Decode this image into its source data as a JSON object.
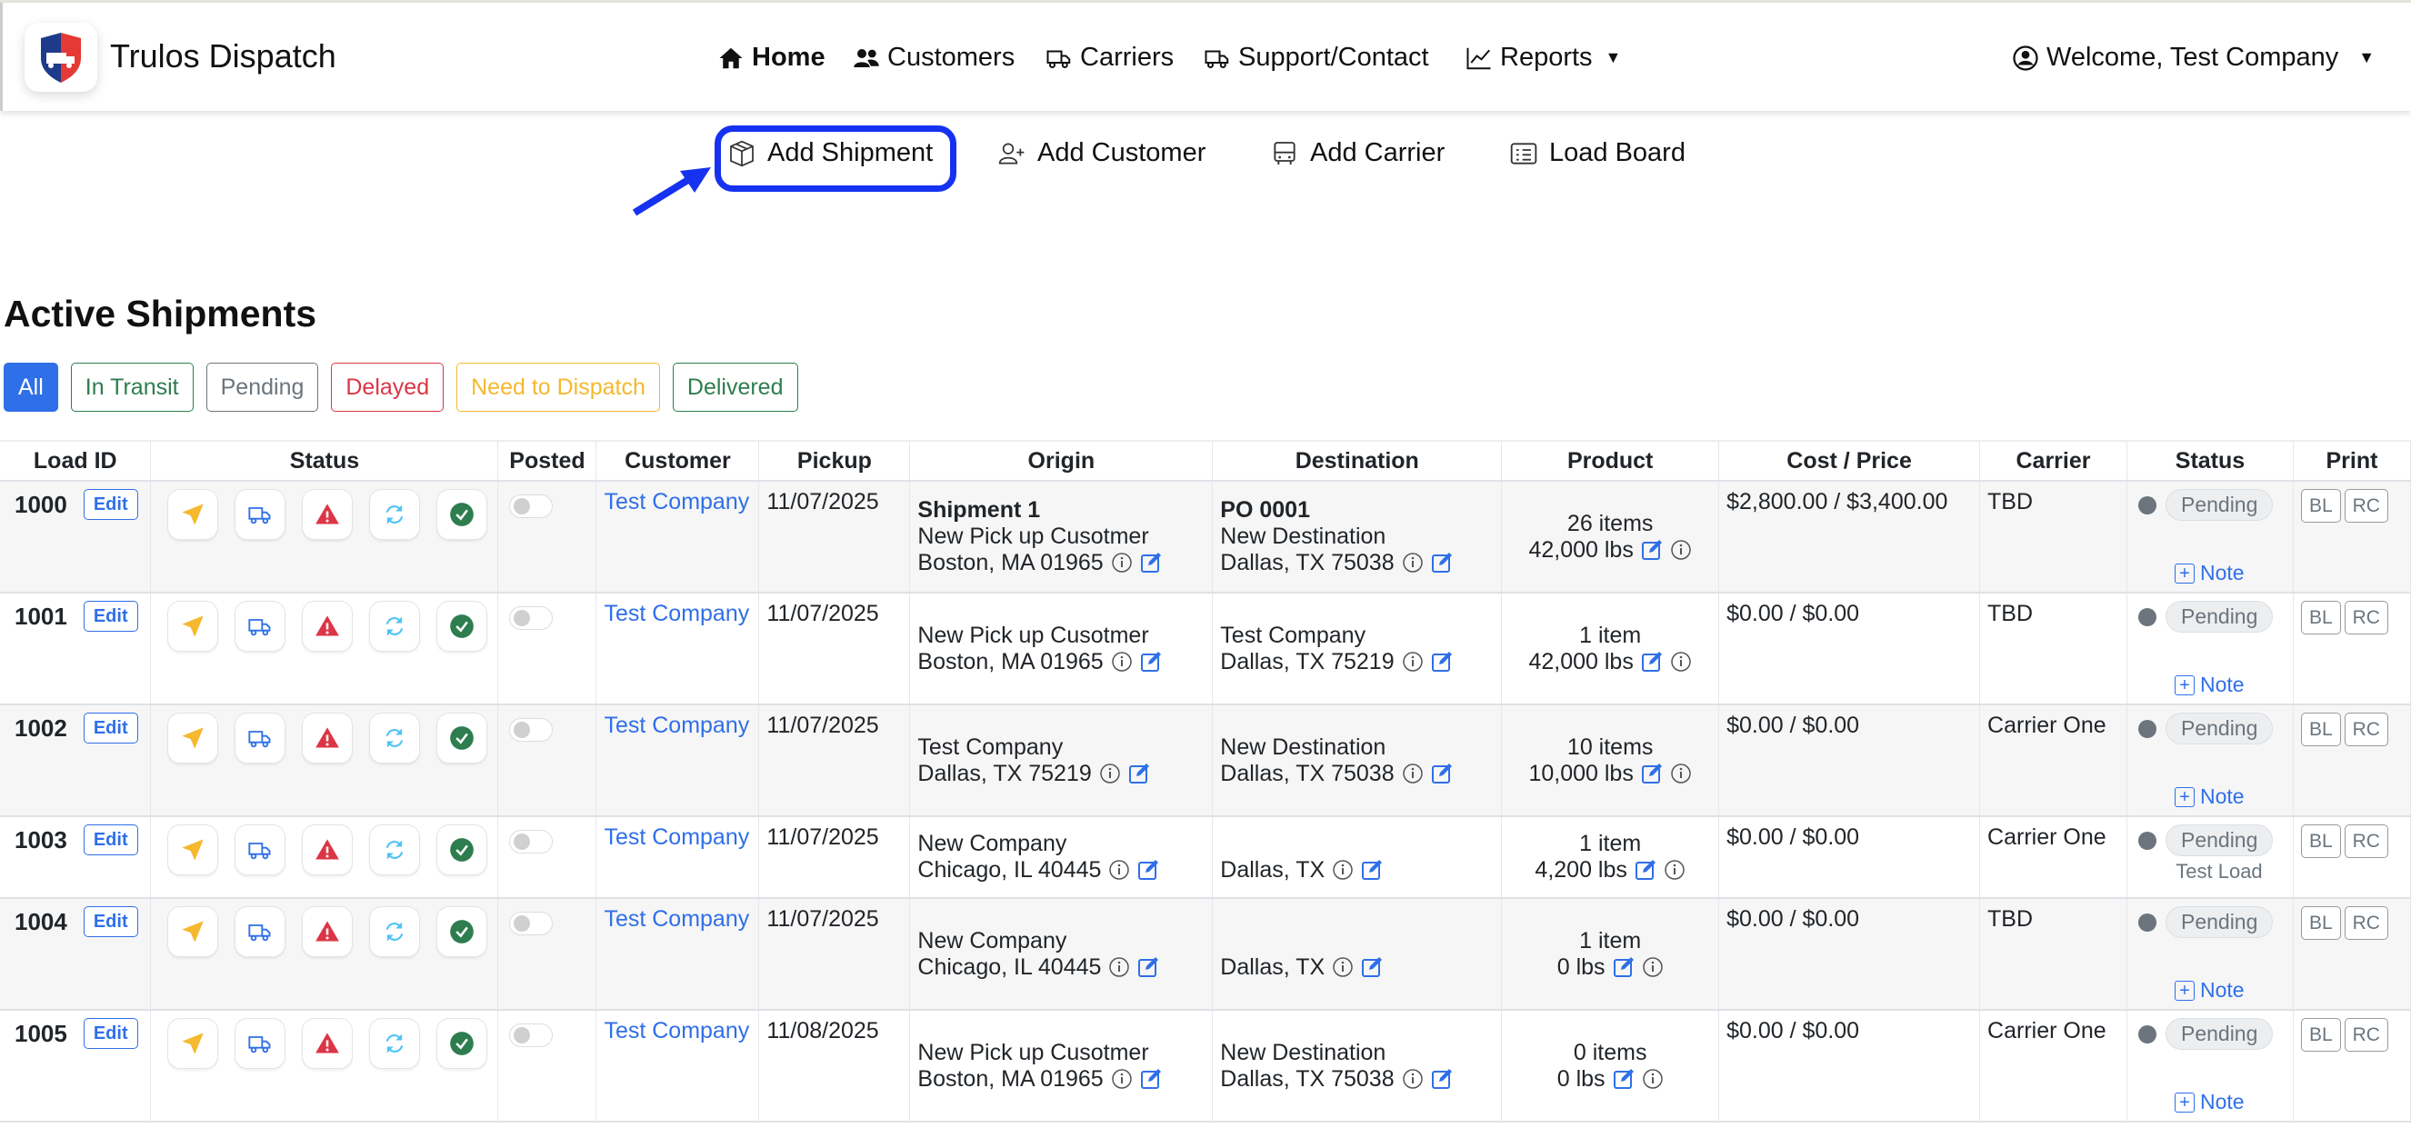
{
  "app": {
    "title": "Trulos Dispatch"
  },
  "nav": {
    "home": "Home",
    "customers": "Customers",
    "carriers": "Carriers",
    "support": "Support/Contact",
    "reports": "Reports",
    "welcome": "Welcome, Test Company"
  },
  "actions": {
    "add_shipment": "Add Shipment",
    "add_customer": "Add Customer",
    "add_carrier": "Add Carrier",
    "load_board": "Load Board"
  },
  "page_title": "Active Shipments",
  "filters": [
    {
      "label": "All",
      "color": "#2f6fe8"
    },
    {
      "label": "In Transit",
      "color": "#2e7d4f"
    },
    {
      "label": "Pending",
      "color": "#6c757d"
    },
    {
      "label": "Delayed",
      "color": "#dc3545"
    },
    {
      "label": "Need to Dispatch",
      "color": "#f5b82e"
    },
    {
      "label": "Delivered",
      "color": "#2e7d4f"
    }
  ],
  "columns": [
    "Load ID",
    "Status",
    "Posted",
    "Customer",
    "Pickup",
    "Origin",
    "Destination",
    "Product",
    "Cost / Price",
    "Carrier",
    "Status",
    "Print"
  ],
  "labels": {
    "edit": "Edit",
    "note": "Note",
    "bl": "BL",
    "rc": "RC"
  },
  "rows": [
    {
      "id": "1000",
      "customer": "Test Company",
      "pickup": "11/07/2025",
      "origin_title": "Shipment 1",
      "origin_name": "New Pick up Cusotmer",
      "origin_city": "Boston, MA 01965",
      "dest_title": "PO 0001",
      "dest_name": "New Destination",
      "dest_city": "Dallas, TX 75038",
      "items": "26 items",
      "weight": "42,000 lbs",
      "cost": "$2,800.00 / $3,400.00",
      "carrier": "TBD",
      "status": "Pending",
      "note": "Note"
    },
    {
      "id": "1001",
      "customer": "Test Company",
      "pickup": "11/07/2025",
      "origin_name": "New Pick up Cusotmer",
      "origin_city": "Boston, MA 01965",
      "dest_name": "Test Company",
      "dest_city": "Dallas, TX 75219",
      "items": "1 item",
      "weight": "42,000 lbs",
      "cost": "$0.00 / $0.00",
      "carrier": "TBD",
      "status": "Pending",
      "note": "Note"
    },
    {
      "id": "1002",
      "customer": "Test Company",
      "pickup": "11/07/2025",
      "origin_name": "Test Company",
      "origin_city": "Dallas, TX 75219",
      "dest_name": "New Destination",
      "dest_city": "Dallas, TX 75038",
      "items": "10 items",
      "weight": "10,000 lbs",
      "cost": "$0.00 / $0.00",
      "carrier": "Carrier One",
      "status": "Pending",
      "note": "Note"
    },
    {
      "id": "1003",
      "customer": "Test Company",
      "pickup": "11/07/2025",
      "origin_name": "New Company",
      "origin_city": "Chicago, IL 40445",
      "dest_city": "Dallas, TX",
      "items": "1 item",
      "weight": "4,200 lbs",
      "cost": "$0.00 / $0.00",
      "carrier": "Carrier One",
      "status": "Pending",
      "status_note": "Test Load"
    },
    {
      "id": "1004",
      "customer": "Test Company",
      "pickup": "11/07/2025",
      "origin_name": "New Company",
      "origin_city": "Chicago, IL 40445",
      "dest_city": "Dallas, TX",
      "items": "1 item",
      "weight": "0 lbs",
      "cost": "$0.00 / $0.00",
      "carrier": "TBD",
      "status": "Pending",
      "note": "Note"
    },
    {
      "id": "1005",
      "customer": "Test Company",
      "pickup": "11/08/2025",
      "origin_name": "New Pick up Cusotmer",
      "origin_city": "Boston, MA 01965",
      "dest_name": "New Destination",
      "dest_city": "Dallas, TX 75038",
      "items": "0 items",
      "weight": "0 lbs",
      "cost": "$0.00 / $0.00",
      "carrier": "Carrier One",
      "status": "Pending",
      "note": "Note"
    }
  ],
  "colors": {
    "accent": "#2f6fe8",
    "highlight": "#1632f0",
    "dispatch": "#f5b82e",
    "transit": "#2f6fe8",
    "delayed": "#dc3545",
    "pending": "#4fc3f7",
    "delivered": "#2e7d4f"
  }
}
